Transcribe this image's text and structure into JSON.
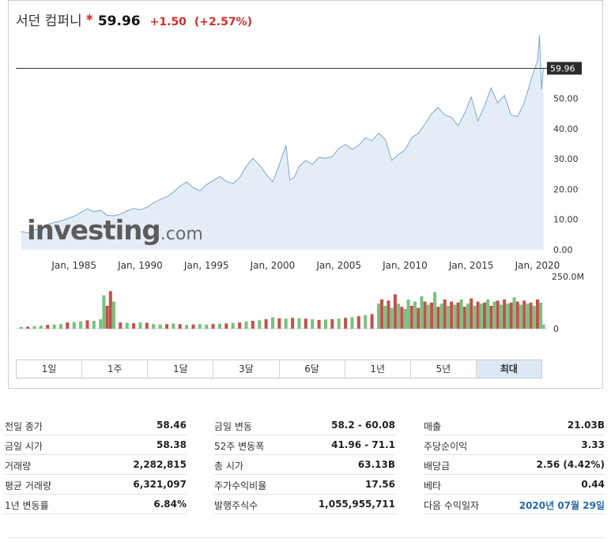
{
  "header": {
    "name": "서던 컴퍼니",
    "star": "✱",
    "price": "59.96",
    "change": "+1.50",
    "change_pct": "(+2.57%)",
    "down_color": "#d0302b"
  },
  "watermark": {
    "brand": "investing",
    "domain": ".com"
  },
  "chart_data": {
    "type": "area",
    "x_ticks": [
      "Jan, 1985",
      "Jan, 1990",
      "Jan, 1995",
      "Jan, 2000",
      "Jan, 2005",
      "Jan, 2010",
      "Jan, 2015",
      "Jan, 2020"
    ],
    "y_ticks": [
      "0.00",
      "10.00",
      "20.00",
      "30.00",
      "40.00",
      "50.00"
    ],
    "ylim": [
      0,
      70
    ],
    "current_label": "59.96",
    "current_value": 59.96,
    "area_color": "#7ea6cf",
    "area_fill": "#e4edf6",
    "series": [
      {
        "x": 1981.0,
        "y": 6.0
      },
      {
        "x": 1981.5,
        "y": 5.5
      },
      {
        "x": 1982.0,
        "y": 6.5
      },
      {
        "x": 1982.5,
        "y": 7.2
      },
      {
        "x": 1983.0,
        "y": 8.3
      },
      {
        "x": 1983.5,
        "y": 9.0
      },
      {
        "x": 1984.0,
        "y": 9.5
      },
      {
        "x": 1984.5,
        "y": 10.3
      },
      {
        "x": 1985.0,
        "y": 11.0
      },
      {
        "x": 1985.5,
        "y": 12.3
      },
      {
        "x": 1986.0,
        "y": 13.5
      },
      {
        "x": 1986.5,
        "y": 12.6
      },
      {
        "x": 1987.0,
        "y": 13.0
      },
      {
        "x": 1987.5,
        "y": 11.4
      },
      {
        "x": 1988.0,
        "y": 11.2
      },
      {
        "x": 1988.5,
        "y": 11.8
      },
      {
        "x": 1989.0,
        "y": 12.8
      },
      {
        "x": 1989.5,
        "y": 13.6
      },
      {
        "x": 1990.0,
        "y": 13.2
      },
      {
        "x": 1990.5,
        "y": 14.0
      },
      {
        "x": 1991.0,
        "y": 15.5
      },
      {
        "x": 1991.5,
        "y": 16.6
      },
      {
        "x": 1992.0,
        "y": 17.5
      },
      {
        "x": 1992.5,
        "y": 19.0
      },
      {
        "x": 1993.0,
        "y": 21.0
      },
      {
        "x": 1993.5,
        "y": 22.4
      },
      {
        "x": 1994.0,
        "y": 20.5
      },
      {
        "x": 1994.5,
        "y": 19.4
      },
      {
        "x": 1995.0,
        "y": 21.5
      },
      {
        "x": 1995.5,
        "y": 22.8
      },
      {
        "x": 1996.0,
        "y": 24.2
      },
      {
        "x": 1996.5,
        "y": 22.6
      },
      {
        "x": 1997.0,
        "y": 21.8
      },
      {
        "x": 1997.5,
        "y": 23.8
      },
      {
        "x": 1998.0,
        "y": 27.5
      },
      {
        "x": 1998.5,
        "y": 30.2
      },
      {
        "x": 1999.0,
        "y": 28.0
      },
      {
        "x": 1999.5,
        "y": 25.0
      },
      {
        "x": 2000.0,
        "y": 22.4
      },
      {
        "x": 2000.5,
        "y": 28.0
      },
      {
        "x": 2001.0,
        "y": 34.5
      },
      {
        "x": 2001.3,
        "y": 23.0
      },
      {
        "x": 2001.6,
        "y": 23.8
      },
      {
        "x": 2002.0,
        "y": 27.5
      },
      {
        "x": 2002.5,
        "y": 29.5
      },
      {
        "x": 2003.0,
        "y": 28.2
      },
      {
        "x": 2003.5,
        "y": 30.5
      },
      {
        "x": 2004.0,
        "y": 30.2
      },
      {
        "x": 2004.5,
        "y": 30.8
      },
      {
        "x": 2005.0,
        "y": 33.5
      },
      {
        "x": 2005.5,
        "y": 34.8
      },
      {
        "x": 2006.0,
        "y": 33.2
      },
      {
        "x": 2006.5,
        "y": 34.5
      },
      {
        "x": 2007.0,
        "y": 37.0
      },
      {
        "x": 2007.5,
        "y": 36.0
      },
      {
        "x": 2008.0,
        "y": 38.5
      },
      {
        "x": 2008.5,
        "y": 36.5
      },
      {
        "x": 2009.0,
        "y": 29.5
      },
      {
        "x": 2009.5,
        "y": 31.5
      },
      {
        "x": 2010.0,
        "y": 33.0
      },
      {
        "x": 2010.5,
        "y": 37.0
      },
      {
        "x": 2011.0,
        "y": 38.5
      },
      {
        "x": 2011.5,
        "y": 41.5
      },
      {
        "x": 2012.0,
        "y": 45.0
      },
      {
        "x": 2012.5,
        "y": 47.0
      },
      {
        "x": 2013.0,
        "y": 44.5
      },
      {
        "x": 2013.5,
        "y": 43.8
      },
      {
        "x": 2014.0,
        "y": 41.0
      },
      {
        "x": 2014.5,
        "y": 45.0
      },
      {
        "x": 2015.0,
        "y": 50.5
      },
      {
        "x": 2015.5,
        "y": 42.5
      },
      {
        "x": 2016.0,
        "y": 47.5
      },
      {
        "x": 2016.5,
        "y": 53.5
      },
      {
        "x": 2017.0,
        "y": 48.5
      },
      {
        "x": 2017.5,
        "y": 51.0
      },
      {
        "x": 2018.0,
        "y": 44.5
      },
      {
        "x": 2018.5,
        "y": 44.0
      },
      {
        "x": 2019.0,
        "y": 48.5
      },
      {
        "x": 2019.5,
        "y": 56.0
      },
      {
        "x": 2020.0,
        "y": 62.5
      },
      {
        "x": 2020.15,
        "y": 71.0
      },
      {
        "x": 2020.3,
        "y": 53.0
      },
      {
        "x": 2020.45,
        "y": 59.96
      }
    ],
    "volume_axis_label": "250.0M",
    "volume_zero_label": "0",
    "volume_max": 250,
    "volume_up_color": "#79c07e",
    "volume_down_color": "#c0524b",
    "volume": [
      {
        "x": 1981.0,
        "v": 8,
        "up": true
      },
      {
        "x": 1981.5,
        "v": 10,
        "up": false
      },
      {
        "x": 1982.0,
        "v": 12,
        "up": true
      },
      {
        "x": 1982.5,
        "v": 15,
        "up": true
      },
      {
        "x": 1983.0,
        "v": 18,
        "up": false
      },
      {
        "x": 1983.5,
        "v": 20,
        "up": true
      },
      {
        "x": 1984.0,
        "v": 22,
        "up": true
      },
      {
        "x": 1984.5,
        "v": 30,
        "up": false
      },
      {
        "x": 1985.0,
        "v": 32,
        "up": true
      },
      {
        "x": 1985.5,
        "v": 35,
        "up": true
      },
      {
        "x": 1986.0,
        "v": 40,
        "up": false
      },
      {
        "x": 1986.5,
        "v": 38,
        "up": true
      },
      {
        "x": 1987.0,
        "v": 45,
        "up": true
      },
      {
        "x": 1987.25,
        "v": 160,
        "up": true
      },
      {
        "x": 1987.5,
        "v": 110,
        "up": false
      },
      {
        "x": 1987.75,
        "v": 180,
        "up": false
      },
      {
        "x": 1988.0,
        "v": 130,
        "up": true
      },
      {
        "x": 1988.5,
        "v": 30,
        "up": false
      },
      {
        "x": 1989.0,
        "v": 28,
        "up": true
      },
      {
        "x": 1989.5,
        "v": 26,
        "up": false
      },
      {
        "x": 1990.0,
        "v": 30,
        "up": true
      },
      {
        "x": 1990.5,
        "v": 28,
        "up": false
      },
      {
        "x": 1991.0,
        "v": 22,
        "up": true
      },
      {
        "x": 1991.5,
        "v": 20,
        "up": true
      },
      {
        "x": 1992.0,
        "v": 22,
        "up": false
      },
      {
        "x": 1992.5,
        "v": 25,
        "up": true
      },
      {
        "x": 1993.0,
        "v": 22,
        "up": false
      },
      {
        "x": 1993.5,
        "v": 18,
        "up": true
      },
      {
        "x": 1994.0,
        "v": 20,
        "up": false
      },
      {
        "x": 1994.5,
        "v": 22,
        "up": true
      },
      {
        "x": 1995.0,
        "v": 20,
        "up": true
      },
      {
        "x": 1995.5,
        "v": 22,
        "up": false
      },
      {
        "x": 1996.0,
        "v": 24,
        "up": true
      },
      {
        "x": 1996.5,
        "v": 25,
        "up": false
      },
      {
        "x": 1997.0,
        "v": 28,
        "up": true
      },
      {
        "x": 1997.5,
        "v": 30,
        "up": false
      },
      {
        "x": 1998.0,
        "v": 35,
        "up": true
      },
      {
        "x": 1998.5,
        "v": 38,
        "up": false
      },
      {
        "x": 1999.0,
        "v": 40,
        "up": true
      },
      {
        "x": 1999.5,
        "v": 45,
        "up": false
      },
      {
        "x": 2000.0,
        "v": 55,
        "up": true
      },
      {
        "x": 2000.5,
        "v": 50,
        "up": false
      },
      {
        "x": 2001.0,
        "v": 48,
        "up": true
      },
      {
        "x": 2001.5,
        "v": 52,
        "up": false
      },
      {
        "x": 2002.0,
        "v": 50,
        "up": true
      },
      {
        "x": 2002.5,
        "v": 48,
        "up": false
      },
      {
        "x": 2003.0,
        "v": 45,
        "up": true
      },
      {
        "x": 2003.5,
        "v": 42,
        "up": false
      },
      {
        "x": 2004.0,
        "v": 44,
        "up": true
      },
      {
        "x": 2004.5,
        "v": 46,
        "up": false
      },
      {
        "x": 2005.0,
        "v": 48,
        "up": true
      },
      {
        "x": 2005.5,
        "v": 52,
        "up": false
      },
      {
        "x": 2006.0,
        "v": 55,
        "up": true
      },
      {
        "x": 2006.5,
        "v": 60,
        "up": false
      },
      {
        "x": 2007.0,
        "v": 65,
        "up": true
      },
      {
        "x": 2007.5,
        "v": 70,
        "up": false
      },
      {
        "x": 2008.0,
        "v": 120,
        "up": true
      },
      {
        "x": 2008.25,
        "v": 140,
        "up": false
      },
      {
        "x": 2008.5,
        "v": 110,
        "up": true
      },
      {
        "x": 2008.75,
        "v": 135,
        "up": false
      },
      {
        "x": 2009.0,
        "v": 100,
        "up": true
      },
      {
        "x": 2009.25,
        "v": 165,
        "up": false
      },
      {
        "x": 2009.5,
        "v": 120,
        "up": true
      },
      {
        "x": 2009.75,
        "v": 105,
        "up": false
      },
      {
        "x": 2010.0,
        "v": 95,
        "up": true
      },
      {
        "x": 2010.25,
        "v": 140,
        "up": true
      },
      {
        "x": 2010.5,
        "v": 110,
        "up": false
      },
      {
        "x": 2010.75,
        "v": 130,
        "up": true
      },
      {
        "x": 2011.0,
        "v": 100,
        "up": false
      },
      {
        "x": 2011.25,
        "v": 155,
        "up": true
      },
      {
        "x": 2011.5,
        "v": 130,
        "up": false
      },
      {
        "x": 2011.75,
        "v": 115,
        "up": true
      },
      {
        "x": 2012.0,
        "v": 125,
        "up": false
      },
      {
        "x": 2012.25,
        "v": 175,
        "up": true
      },
      {
        "x": 2012.5,
        "v": 105,
        "up": false
      },
      {
        "x": 2012.75,
        "v": 120,
        "up": true
      },
      {
        "x": 2013.0,
        "v": 140,
        "up": false
      },
      {
        "x": 2013.25,
        "v": 110,
        "up": true
      },
      {
        "x": 2013.5,
        "v": 130,
        "up": false
      },
      {
        "x": 2013.75,
        "v": 115,
        "up": true
      },
      {
        "x": 2014.0,
        "v": 125,
        "up": false
      },
      {
        "x": 2014.25,
        "v": 140,
        "up": true
      },
      {
        "x": 2014.5,
        "v": 105,
        "up": false
      },
      {
        "x": 2014.75,
        "v": 120,
        "up": true
      },
      {
        "x": 2015.0,
        "v": 145,
        "up": false
      },
      {
        "x": 2015.25,
        "v": 110,
        "up": true
      },
      {
        "x": 2015.5,
        "v": 130,
        "up": false
      },
      {
        "x": 2015.75,
        "v": 120,
        "up": true
      },
      {
        "x": 2016.0,
        "v": 125,
        "up": false
      },
      {
        "x": 2016.25,
        "v": 140,
        "up": true
      },
      {
        "x": 2016.5,
        "v": 110,
        "up": false
      },
      {
        "x": 2016.75,
        "v": 130,
        "up": true
      },
      {
        "x": 2017.0,
        "v": 135,
        "up": false
      },
      {
        "x": 2017.25,
        "v": 115,
        "up": true
      },
      {
        "x": 2017.5,
        "v": 140,
        "up": false
      },
      {
        "x": 2017.75,
        "v": 120,
        "up": true
      },
      {
        "x": 2018.0,
        "v": 125,
        "up": false
      },
      {
        "x": 2018.25,
        "v": 150,
        "up": true
      },
      {
        "x": 2018.5,
        "v": 130,
        "up": false
      },
      {
        "x": 2018.75,
        "v": 115,
        "up": true
      },
      {
        "x": 2019.0,
        "v": 135,
        "up": false
      },
      {
        "x": 2019.25,
        "v": 120,
        "up": true
      },
      {
        "x": 2019.5,
        "v": 125,
        "up": false
      },
      {
        "x": 2019.75,
        "v": 110,
        "up": true
      },
      {
        "x": 2020.0,
        "v": 140,
        "up": false
      },
      {
        "x": 2020.25,
        "v": 125,
        "up": true
      },
      {
        "x": 2020.45,
        "v": 20,
        "up": true
      }
    ]
  },
  "range_buttons": [
    "1일",
    "1주",
    "1달",
    "3달",
    "6달",
    "1년",
    "5년",
    "최대"
  ],
  "active_range": 7,
  "stats": {
    "col1": [
      {
        "label": "전일 종가",
        "value": "58.46"
      },
      {
        "label": "금일 시가",
        "value": "58.38"
      },
      {
        "label": "거래량",
        "value": "2,282,815"
      },
      {
        "label": "평균 거래량",
        "value": "6,321,097"
      },
      {
        "label": "1년 변동률",
        "value": "6.84%"
      }
    ],
    "col2": [
      {
        "label": "금일 변동",
        "value": "58.2 - 60.08"
      },
      {
        "label": "52주 변동폭",
        "value": "41.96 - 71.1"
      },
      {
        "label": "총 시가",
        "value": "63.13B"
      },
      {
        "label": "주가수익비율",
        "value": "17.56"
      },
      {
        "label": "발행주식수",
        "value": "1,055,955,711"
      }
    ],
    "col3": [
      {
        "label": "매출",
        "value": "21.03B"
      },
      {
        "label": "주당순이익",
        "value": "3.33"
      },
      {
        "label": "배당금",
        "value": "2.56 (4.42%)"
      },
      {
        "label": "베타",
        "value": "0.44"
      },
      {
        "label": "다음 수익일자",
        "value": "2020년 07월 29일",
        "link": true
      }
    ]
  }
}
